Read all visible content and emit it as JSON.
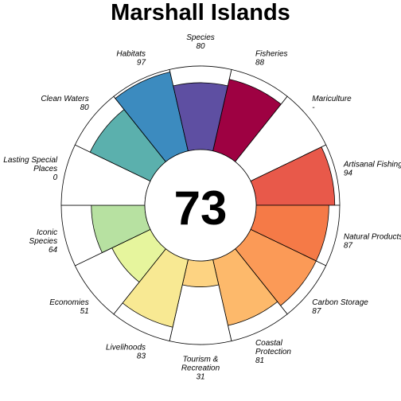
{
  "chart_data": {
    "type": "flower",
    "title": "Marshall Islands",
    "center_score": "73",
    "max_value": 100,
    "petals": [
      {
        "label": [
          "Fisheries"
        ],
        "value_text": "88",
        "value": 88,
        "color": "#9e0142"
      },
      {
        "label": [
          "Mariculture"
        ],
        "value_text": "-",
        "value": null,
        "color": "#d53e4f"
      },
      {
        "label": [
          "Artisanal Fishing Opportunities"
        ],
        "value_text": "94",
        "value": 94,
        "color": "#e8594a"
      },
      {
        "label": [
          "Natural Products"
        ],
        "value_text": "87",
        "value": 87,
        "color": "#f57a47"
      },
      {
        "label": [
          "Carbon Storage"
        ],
        "value_text": "87",
        "value": 87,
        "color": "#fb9a57"
      },
      {
        "label": [
          "Coastal",
          "Protection"
        ],
        "value_text": "81",
        "value": 81,
        "color": "#fdb96b"
      },
      {
        "label": [
          "Tourism &",
          "Recreation"
        ],
        "value_text": "31",
        "value": 31,
        "color": "#fdd382"
      },
      {
        "label": [
          "Livelihoods"
        ],
        "value_text": "83",
        "value": 83,
        "color": "#f8e993"
      },
      {
        "label": [
          "Economies"
        ],
        "value_text": "51",
        "value": 51,
        "color": "#e6f59d"
      },
      {
        "label": [
          "Iconic",
          "Species"
        ],
        "value_text": "64",
        "value": 64,
        "color": "#b7e1a1"
      },
      {
        "label": [
          "Lasting Special",
          "Places"
        ],
        "value_text": "0",
        "value": 0,
        "color": "#89cfa5"
      },
      {
        "label": [
          "Clean Waters"
        ],
        "value_text": "80",
        "value": 80,
        "color": "#5bb0ad"
      },
      {
        "label": [
          "Habitats"
        ],
        "value_text": "97",
        "value": 97,
        "color": "#3c8bbf"
      },
      {
        "label": [
          "Species"
        ],
        "value_text": "80",
        "value": 80,
        "color": "#5e4fa2"
      }
    ]
  }
}
